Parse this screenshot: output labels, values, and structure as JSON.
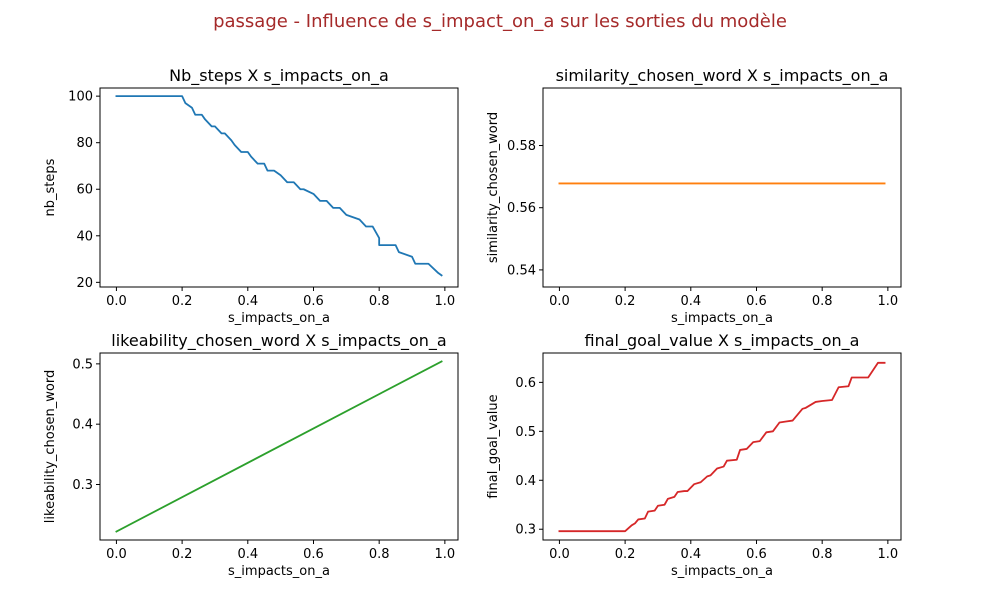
{
  "figure": {
    "suptitle": "passage - Influence de s_impact_on_a sur les sorties du modèle",
    "suptitle_color": "#a52a2a"
  },
  "chart_data": [
    {
      "type": "line",
      "title": "Nb_steps X s_impacts_on_a",
      "xlabel": "s_impacts_on_a",
      "ylabel": "nb_steps",
      "xlim": [
        -0.05,
        1.04
      ],
      "ylim": [
        18,
        103.5
      ],
      "xticks": [
        0.0,
        0.2,
        0.4,
        0.6,
        0.8,
        1.0
      ],
      "yticks": [
        20,
        40,
        60,
        80,
        100
      ],
      "ytick_decimals": 0,
      "color": "#1f77b4",
      "grid": false,
      "x": [
        0.0,
        0.2,
        0.21,
        0.23,
        0.24,
        0.26,
        0.27,
        0.29,
        0.3,
        0.32,
        0.33,
        0.35,
        0.36,
        0.38,
        0.4,
        0.41,
        0.43,
        0.45,
        0.46,
        0.48,
        0.5,
        0.52,
        0.54,
        0.56,
        0.57,
        0.6,
        0.62,
        0.64,
        0.66,
        0.68,
        0.7,
        0.74,
        0.76,
        0.78,
        0.8,
        0.8,
        0.85,
        0.86,
        0.9,
        0.91,
        0.95,
        0.98,
        0.99
      ],
      "y": [
        100,
        100,
        97,
        95,
        92,
        92,
        90,
        87,
        87,
        84,
        84,
        81,
        79,
        76,
        76,
        74,
        71,
        71,
        68,
        68,
        66,
        63,
        63,
        60,
        60,
        58,
        55,
        55,
        52,
        52,
        49,
        47,
        44,
        44,
        39,
        36,
        36,
        33,
        31,
        28,
        28,
        24,
        23
      ]
    },
    {
      "type": "line",
      "title": "similarity_chosen_word X s_impacts_on_a",
      "xlabel": "s_impacts_on_a",
      "ylabel": "similarity_chosen_word",
      "xlim": [
        -0.05,
        1.04
      ],
      "ylim": [
        0.5345,
        0.5985
      ],
      "xticks": [
        0.0,
        0.2,
        0.4,
        0.6,
        0.8,
        1.0
      ],
      "yticks": [
        0.54,
        0.56,
        0.58
      ],
      "ytick_decimals": 2,
      "color": "#ff7f0e",
      "grid": false,
      "x": [
        0.0,
        0.99
      ],
      "y": [
        0.5678,
        0.5678
      ]
    },
    {
      "type": "line",
      "title": "likeability_chosen_word X s_impacts_on_a",
      "xlabel": "s_impacts_on_a",
      "ylabel": "likeability_chosen_word",
      "xlim": [
        -0.05,
        1.04
      ],
      "ylim": [
        0.208,
        0.518
      ],
      "xticks": [
        0.0,
        0.2,
        0.4,
        0.6,
        0.8,
        1.0
      ],
      "yticks": [
        0.3,
        0.4,
        0.5
      ],
      "ytick_decimals": 1,
      "color": "#2ca02c",
      "grid": false,
      "x": [
        0.0,
        0.99
      ],
      "y": [
        0.222,
        0.504
      ]
    },
    {
      "type": "line",
      "title": "final_goal_value X s_impacts_on_a",
      "xlabel": "s_impacts_on_a",
      "ylabel": "final_goal_value",
      "xlim": [
        -0.05,
        1.04
      ],
      "ylim": [
        0.278,
        0.66
      ],
      "xticks": [
        0.0,
        0.2,
        0.4,
        0.6,
        0.8,
        1.0
      ],
      "yticks": [
        0.3,
        0.4,
        0.5,
        0.6
      ],
      "ytick_decimals": 1,
      "color": "#d62728",
      "grid": false,
      "x": [
        0.0,
        0.2,
        0.22,
        0.23,
        0.24,
        0.26,
        0.27,
        0.29,
        0.3,
        0.32,
        0.33,
        0.35,
        0.36,
        0.38,
        0.39,
        0.41,
        0.43,
        0.45,
        0.46,
        0.48,
        0.5,
        0.51,
        0.54,
        0.55,
        0.57,
        0.59,
        0.61,
        0.63,
        0.65,
        0.67,
        0.69,
        0.71,
        0.74,
        0.75,
        0.78,
        0.8,
        0.83,
        0.85,
        0.88,
        0.89,
        0.92,
        0.94,
        0.97,
        0.98,
        0.99
      ],
      "y": [
        0.296,
        0.296,
        0.308,
        0.312,
        0.32,
        0.322,
        0.336,
        0.338,
        0.348,
        0.35,
        0.362,
        0.366,
        0.376,
        0.378,
        0.378,
        0.392,
        0.396,
        0.408,
        0.41,
        0.424,
        0.428,
        0.44,
        0.442,
        0.462,
        0.464,
        0.478,
        0.48,
        0.498,
        0.5,
        0.518,
        0.52,
        0.522,
        0.546,
        0.548,
        0.56,
        0.562,
        0.564,
        0.59,
        0.592,
        0.61,
        0.61,
        0.61,
        0.64,
        0.64,
        0.64
      ]
    }
  ]
}
